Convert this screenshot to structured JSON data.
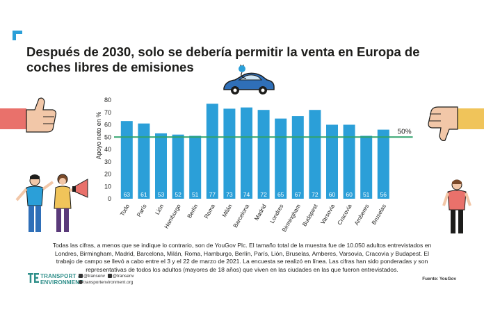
{
  "title": "Después de 2030, solo se debería permitir la venta en Europa de coches libres de emisiones",
  "reference_label": "50%",
  "chart_data": {
    "type": "bar",
    "ylabel": "Apoyo neto en %",
    "ylim": [
      0,
      80
    ],
    "yticks": [
      0,
      10,
      20,
      30,
      40,
      50,
      60,
      70,
      80
    ],
    "reference_line": 50,
    "bar_color": "#2b9fd8",
    "reference_color": "#2fa36b",
    "categories": [
      "Todo",
      "París",
      "Lión",
      "Hamburgo",
      "Berlín",
      "Roma",
      "Milán",
      "Barcelona",
      "Madrid",
      "Londres",
      "Birmingham",
      "Budapest",
      "Varsovia",
      "Cracovia",
      "Amberes",
      "Bruselas"
    ],
    "values": [
      63,
      61,
      53,
      52,
      51,
      77,
      73,
      74,
      72,
      65,
      67,
      72,
      60,
      60,
      51,
      56
    ]
  },
  "notes": "Todas las cifras, a menos que se indique lo contrario, son de YouGov Plc. El tamaño total de la muestra fue de 10.050 adultos entrevistados en Londres, Birmingham, Madrid, Barcelona, Milán, Roma, Hamburgo, Berlín, París, Lión, Bruselas, Amberes, Varsovia, Cracovia y Budapest. El trabajo de campo se llevó a cabo entre el 3 y el 22 de marzo de 2021. La encuesta se realizó en línea. Las cifras han sido ponderadas y son representativas de todos los adultos (mayores de 18 años) que viven en las ciudades en las que fueron entrevistados.",
  "footer": {
    "brand_line1": "TRANSPORT &",
    "brand_line2": "ENVIRONMENT",
    "twitter": "@transenv",
    "facebook": "@transenv",
    "website": "transportenvironment.org",
    "source": "Fuente: YouGov"
  },
  "icons": [
    "corner-bracket-icon",
    "electric-car-icon",
    "thumbs-up-icon",
    "thumbs-down-icon",
    "megaphone-icon",
    "transport-environment-logo-icon"
  ]
}
